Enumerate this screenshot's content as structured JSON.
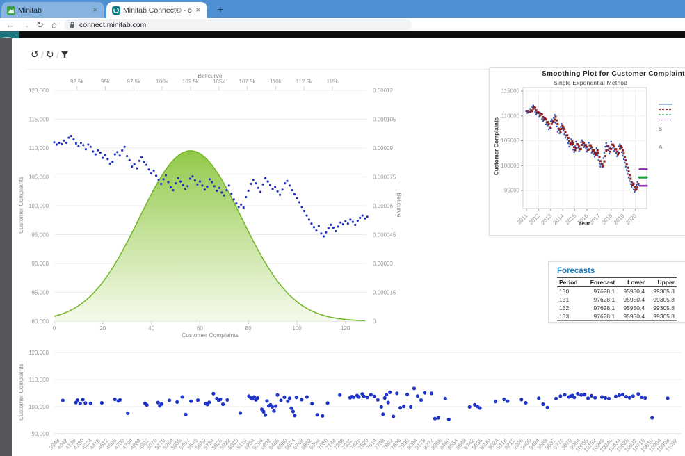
{
  "browser": {
    "tabs": [
      {
        "title": "Minitab",
        "favicon": "minitab-green-logo"
      },
      {
        "title": "Minitab Connect® - connect.min",
        "favicon": "minitab-connect-teal-logo"
      }
    ],
    "close_label": "×",
    "new_tab_label": "+",
    "nav": {
      "back": "←",
      "forward": "→",
      "reload": "↻",
      "home": "⌂"
    },
    "url": "connect.minitab.com"
  },
  "toolbar": {
    "separator": "/",
    "history_icon": "↺",
    "refresh_icon": "↻",
    "filter_icon": "funnel"
  },
  "colors": {
    "tab_bar": "#4e90d3",
    "app_logo_teal": "#1a757d",
    "left_strip": "#56575b",
    "black_bar": "#0e0e0e",
    "scatter_blue": "#2433bd",
    "bottom_blue": "#1f35c8",
    "bell_stroke": "#76b62c",
    "bell_fill_top": "#8dc63f",
    "bell_fill_bottom": "#f4fae9",
    "actual_blue": "#2456c4",
    "fits_dark_red": "#8c1d18",
    "forecast_green": "#1fa03c",
    "pi_purple": "#8e2fb5",
    "forecast_title_blue": "#1b7fc0"
  },
  "forecasts": {
    "title": "Forecasts",
    "headers": [
      "Period",
      "Forecast",
      "Lower",
      "Upper"
    ],
    "rows": [
      [
        "130",
        "97628.1",
        "95950.4",
        "99305.8"
      ],
      [
        "131",
        "97628.1",
        "95950.4",
        "99305.8"
      ],
      [
        "132",
        "97628.1",
        "95950.4",
        "99305.8"
      ],
      [
        "133",
        "97628.1",
        "95950.4",
        "99305.8"
      ]
    ]
  },
  "chart_data": [
    {
      "id": "complaints-scatter-with-bellcurve",
      "type": "scatter",
      "xlabel": "Customer Complaints",
      "x2label": "Bellcurve",
      "ylabel": "Customer Complaints",
      "y2label": "Bellcurve",
      "xticks": [
        0,
        20,
        40,
        60,
        80,
        100,
        120
      ],
      "x2ticks": [
        "92.5k",
        "95k",
        "97.5k",
        "100k",
        "102.5k",
        "105k",
        "107.5k",
        "110k",
        "112.5k",
        "115k"
      ],
      "x2tick_values": [
        92500,
        95000,
        97500,
        100000,
        102500,
        105000,
        107500,
        110000,
        112500,
        115000
      ],
      "yticks": [
        "120,000",
        "115,000",
        "110,000",
        "105,000",
        "100,000",
        "95,000",
        "90,000",
        "85,000",
        "80,000"
      ],
      "ytick_values": [
        120000,
        115000,
        110000,
        105000,
        100000,
        95000,
        90000,
        85000,
        80000
      ],
      "y2ticks": [
        "0.00012",
        "0.000105",
        "0.00009",
        "0.000075",
        "0.00006",
        "0.000045",
        "0.00003",
        "0.000015",
        "0"
      ],
      "y2tick_values": [
        0.00012,
        0.000105,
        9e-05,
        7.5e-05,
        6e-05,
        4.5e-05,
        3e-05,
        1.5e-05,
        0
      ],
      "ylim": [
        80000,
        120000
      ],
      "y2lim": [
        0,
        0.00012
      ],
      "xlim": [
        0,
        129
      ],
      "x2lim": [
        90500,
        118000
      ],
      "grid": true,
      "bellcurve": {
        "mean": 102500,
        "sd": 4500,
        "peak_density": 8.86e-05
      },
      "values": [
        111000,
        110600,
        110900,
        110700,
        111300,
        110900,
        111800,
        112100,
        111500,
        110800,
        110300,
        110900,
        110500,
        109800,
        110600,
        110200,
        109400,
        108900,
        109600,
        109200,
        108300,
        108800,
        108100,
        107300,
        107600,
        108900,
        109300,
        108700,
        109600,
        110200,
        108600,
        107900,
        106800,
        107200,
        106500,
        107800,
        108400,
        107600,
        107100,
        106300,
        105600,
        106100,
        105200,
        104500,
        103800,
        104600,
        105300,
        104100,
        103200,
        102700,
        103900,
        104800,
        104200,
        103600,
        102900,
        103400,
        104700,
        105100,
        104400,
        103700,
        104200,
        103500,
        102800,
        103300,
        104600,
        104100,
        103400,
        102600,
        103100,
        102300,
        101800,
        102700,
        103500,
        102100,
        101100,
        100400,
        99800,
        100200,
        99700,
        101500,
        102600,
        103800,
        104500,
        103900,
        103100,
        102400,
        103700,
        104800,
        104200,
        103600,
        102900,
        103300,
        102500,
        101900,
        102800,
        103900,
        104300,
        103500,
        102700,
        102000,
        101300,
        100600,
        99800,
        99100,
        98300,
        97600,
        96900,
        96300,
        95700,
        96500,
        95200,
        94700,
        95400,
        96100,
        96700,
        96200,
        95600,
        96400,
        97100,
        96800,
        97300,
        96900,
        97600,
        97200,
        96700,
        97400,
        97900,
        98300,
        97800,
        98100
      ]
    },
    {
      "id": "smoothing-plot",
      "type": "line",
      "title": "Smoothing Plot for Customer Complaint",
      "subtitle": "Single Exponential Method",
      "xlabel": "Year",
      "ylabel": "Customer Complaints",
      "xticks": [
        "2011",
        "2012",
        "2013",
        "2014",
        "2015",
        "2016",
        "2017",
        "2018",
        "2019",
        "2020"
      ],
      "yticks": [
        "115000",
        "110000",
        "105000",
        "100000",
        "95000"
      ],
      "ytick_values": [
        115000,
        110000,
        105000,
        100000,
        95000
      ],
      "ylim": [
        91500,
        116000
      ],
      "grid": true,
      "legend_position": "right (clipped at window edge)",
      "legend_fragments": [
        "S",
        "A"
      ],
      "actual_series_ref": 0,
      "actual_points_shown": 116,
      "forecast": {
        "periods": [
          130,
          131,
          132,
          133
        ],
        "value": 97628.1,
        "lower": 95950.4,
        "upper": 99305.8
      }
    },
    {
      "id": "bottom-scatter",
      "type": "scatter",
      "ylabel": "Customer Complaints",
      "yticks": [
        "120,000",
        "110,000",
        "100,000",
        "90,000"
      ],
      "ytick_values": [
        120000,
        110000,
        100000,
        90000
      ],
      "ylim": [
        90000,
        120000
      ],
      "grid": true,
      "xtick_labels": [
        "3948",
        "4042",
        "4136",
        "4230",
        "4324",
        "4418",
        "4512",
        "4606",
        "4700",
        "4794",
        "4888",
        "4982",
        "5076",
        "5170",
        "5264",
        "5358",
        "5452",
        "5546",
        "5640",
        "5734",
        "5828",
        "5922",
        "6016",
        "6110",
        "6204",
        "6298",
        "6392",
        "6486",
        "6580",
        "6674",
        "6768",
        "6862",
        "6956",
        "7050",
        "7144",
        "7238",
        "7332",
        "7426",
        "7520",
        "7614",
        "7708",
        "7802",
        "7896",
        "7990",
        "8084",
        "8178",
        "8272",
        "8366",
        "8460",
        "8554",
        "8648",
        "8742",
        "8836",
        "8930",
        "9024",
        "9118",
        "9212",
        "9306",
        "9400",
        "9494",
        "9588",
        "9682",
        "9776",
        "9870",
        "9964",
        "10058",
        "10152",
        "10246",
        "10340",
        "10434",
        "10528",
        "10622",
        "10716",
        "10810",
        "10904",
        "10998",
        "11092"
      ],
      "points": [
        [
          4000,
          102300
        ],
        [
          4150,
          101500
        ],
        [
          4170,
          102400
        ],
        [
          4200,
          101200
        ],
        [
          4230,
          102600
        ],
        [
          4260,
          101300
        ],
        [
          4320,
          101200
        ],
        [
          4450,
          101400
        ],
        [
          4600,
          102700
        ],
        [
          4640,
          102100
        ],
        [
          4660,
          102500
        ],
        [
          4750,
          97600
        ],
        [
          4950,
          101200
        ],
        [
          4970,
          100600
        ],
        [
          5100,
          101500
        ],
        [
          5120,
          100300
        ],
        [
          5140,
          101000
        ],
        [
          5230,
          102300
        ],
        [
          5320,
          101700
        ],
        [
          5380,
          103600
        ],
        [
          5420,
          97100
        ],
        [
          5480,
          102000
        ],
        [
          5560,
          102400
        ],
        [
          5650,
          101100
        ],
        [
          5670,
          100800
        ],
        [
          5690,
          101600
        ],
        [
          5740,
          104800
        ],
        [
          5780,
          103000
        ],
        [
          5800,
          102300
        ],
        [
          5820,
          102700
        ],
        [
          5850,
          100900
        ],
        [
          5900,
          102500
        ],
        [
          6050,
          97700
        ],
        [
          6150,
          103900
        ],
        [
          6170,
          103300
        ],
        [
          6190,
          102900
        ],
        [
          6210,
          103600
        ],
        [
          6230,
          102500
        ],
        [
          6250,
          103200
        ],
        [
          6300,
          99000
        ],
        [
          6320,
          98100
        ],
        [
          6340,
          96900
        ],
        [
          6360,
          102100
        ],
        [
          6380,
          100300
        ],
        [
          6400,
          100700
        ],
        [
          6420,
          99900
        ],
        [
          6440,
          98400
        ],
        [
          6460,
          100200
        ],
        [
          6480,
          104300
        ],
        [
          6520,
          102300
        ],
        [
          6560,
          103500
        ],
        [
          6600,
          102000
        ],
        [
          6620,
          103100
        ],
        [
          6640,
          99400
        ],
        [
          6660,
          98200
        ],
        [
          6680,
          96700
        ],
        [
          6700,
          103400
        ],
        [
          6760,
          102600
        ],
        [
          6820,
          103600
        ],
        [
          6880,
          101100
        ],
        [
          6940,
          97000
        ],
        [
          7000,
          96600
        ],
        [
          7060,
          101300
        ],
        [
          7200,
          104300
        ],
        [
          7320,
          103300
        ],
        [
          7340,
          103700
        ],
        [
          7360,
          103500
        ],
        [
          7400,
          104100
        ],
        [
          7420,
          103600
        ],
        [
          7460,
          104700
        ],
        [
          7480,
          103800
        ],
        [
          7520,
          103400
        ],
        [
          7560,
          104400
        ],
        [
          7600,
          103800
        ],
        [
          7640,
          102500
        ],
        [
          7680,
          99900
        ],
        [
          7700,
          97200
        ],
        [
          7720,
          103200
        ],
        [
          7740,
          104400
        ],
        [
          7760,
          101500
        ],
        [
          7780,
          105300
        ],
        [
          7820,
          96400
        ],
        [
          7860,
          104900
        ],
        [
          7900,
          99600
        ],
        [
          7940,
          100100
        ],
        [
          7980,
          104500
        ],
        [
          8020,
          99900
        ],
        [
          8060,
          106700
        ],
        [
          8100,
          103900
        ],
        [
          8140,
          102400
        ],
        [
          8180,
          105100
        ],
        [
          8260,
          104900
        ],
        [
          8300,
          95600
        ],
        [
          8340,
          95900
        ],
        [
          8420,
          103000
        ],
        [
          8460,
          95300
        ],
        [
          8700,
          99900
        ],
        [
          8760,
          100700
        ],
        [
          8790,
          100100
        ],
        [
          8820,
          99500
        ],
        [
          9000,
          101900
        ],
        [
          9100,
          102700
        ],
        [
          9140,
          102000
        ],
        [
          9300,
          102600
        ],
        [
          9350,
          101400
        ],
        [
          9500,
          103100
        ],
        [
          9550,
          100900
        ],
        [
          9600,
          99700
        ],
        [
          9700,
          103000
        ],
        [
          9750,
          103900
        ],
        [
          9800,
          104400
        ],
        [
          9850,
          103600
        ],
        [
          9870,
          103900
        ],
        [
          9890,
          104100
        ],
        [
          9910,
          103400
        ],
        [
          9950,
          104800
        ],
        [
          9990,
          104300
        ],
        [
          10030,
          104500
        ],
        [
          10070,
          103100
        ],
        [
          10110,
          104000
        ],
        [
          10150,
          103300
        ],
        [
          10230,
          103600
        ],
        [
          10270,
          103200
        ],
        [
          10310,
          103000
        ],
        [
          10390,
          103800
        ],
        [
          10430,
          104200
        ],
        [
          10470,
          104500
        ],
        [
          10510,
          103700
        ],
        [
          10550,
          103300
        ],
        [
          10590,
          103900
        ],
        [
          10650,
          104700
        ],
        [
          10690,
          103500
        ],
        [
          10730,
          103200
        ],
        [
          10810,
          95900
        ],
        [
          10990,
          103100
        ]
      ]
    }
  ]
}
